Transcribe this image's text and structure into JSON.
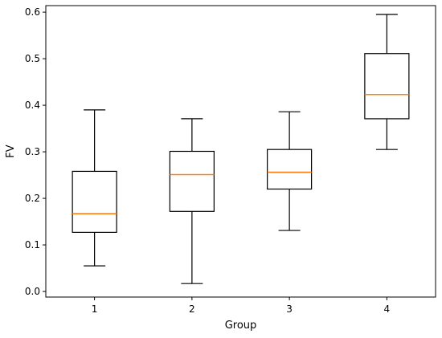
{
  "chart_data": {
    "type": "boxplot",
    "xlabel": "Group",
    "ylabel": "FV",
    "categories": [
      "1",
      "2",
      "3",
      "4"
    ],
    "ylim": [
      -0.012,
      0.614
    ],
    "yticks": [
      "0.0",
      "0.1",
      "0.2",
      "0.3",
      "0.4",
      "0.5",
      "0.6"
    ],
    "grid": false,
    "median_color": "#ff7f0e",
    "box_color": "#000000",
    "boxes": [
      {
        "group": "1",
        "whisker_low": 0.055,
        "q1": 0.127,
        "median": 0.167,
        "q3": 0.258,
        "whisker_high": 0.39
      },
      {
        "group": "2",
        "whisker_low": 0.017,
        "q1": 0.172,
        "median": 0.251,
        "q3": 0.301,
        "whisker_high": 0.371
      },
      {
        "group": "3",
        "whisker_low": 0.131,
        "q1": 0.22,
        "median": 0.256,
        "q3": 0.305,
        "whisker_high": 0.386
      },
      {
        "group": "4",
        "whisker_low": 0.305,
        "q1": 0.371,
        "median": 0.423,
        "q3": 0.511,
        "whisker_high": 0.595
      }
    ]
  }
}
